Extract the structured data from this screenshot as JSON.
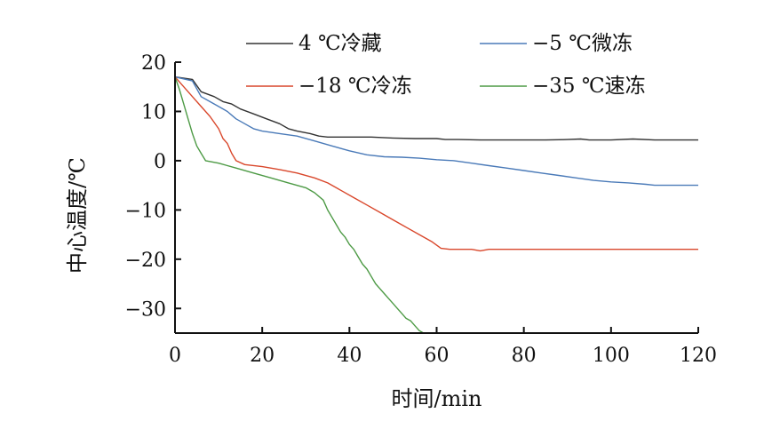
{
  "chart_data": {
    "type": "line",
    "title": "",
    "xlabel": "时间/min",
    "ylabel": "中心温度/℃",
    "xlim": [
      0,
      120
    ],
    "ylim": [
      -35,
      20
    ],
    "xticks": [
      0,
      20,
      40,
      60,
      80,
      100,
      120
    ],
    "yticks": [
      20,
      10,
      0,
      -10,
      -20,
      -30
    ],
    "xtick_labels": [
      "0",
      "20",
      "40",
      "60",
      "80",
      "100",
      "120"
    ],
    "ytick_labels": [
      "20",
      "10",
      "0",
      "−10",
      "−20",
      "−30"
    ],
    "grid": false,
    "legend_position": "top",
    "series": [
      {
        "name": "4 ℃冷藏",
        "color": "#333333",
        "points": [
          [
            0,
            17
          ],
          [
            4,
            16.5
          ],
          [
            6,
            14
          ],
          [
            9,
            13
          ],
          [
            11,
            12
          ],
          [
            13,
            11.5
          ],
          [
            15,
            10.5
          ],
          [
            18,
            9.5
          ],
          [
            21,
            8.5
          ],
          [
            24,
            7.5
          ],
          [
            26,
            6.5
          ],
          [
            28,
            6
          ],
          [
            31,
            5.5
          ],
          [
            33,
            5
          ],
          [
            35,
            4.8
          ],
          [
            40,
            4.8
          ],
          [
            45,
            4.8
          ],
          [
            50,
            4.6
          ],
          [
            55,
            4.5
          ],
          [
            60,
            4.5
          ],
          [
            62,
            4.3
          ],
          [
            65,
            4.3
          ],
          [
            70,
            4.2
          ],
          [
            75,
            4.2
          ],
          [
            80,
            4.2
          ],
          [
            85,
            4.2
          ],
          [
            90,
            4.3
          ],
          [
            93,
            4.4
          ],
          [
            95,
            4.2
          ],
          [
            100,
            4.2
          ],
          [
            105,
            4.4
          ],
          [
            110,
            4.2
          ],
          [
            115,
            4.2
          ],
          [
            120,
            4.2
          ]
        ]
      },
      {
        "name": "−5 ℃微冻",
        "color": "#4a7ab8",
        "points": [
          [
            0,
            17
          ],
          [
            4,
            16.2
          ],
          [
            6,
            13
          ],
          [
            8,
            12
          ],
          [
            10,
            11
          ],
          [
            12,
            10
          ],
          [
            14,
            8.5
          ],
          [
            16,
            7.5
          ],
          [
            18,
            6.5
          ],
          [
            20,
            6
          ],
          [
            24,
            5.5
          ],
          [
            28,
            5
          ],
          [
            32,
            4
          ],
          [
            36,
            3
          ],
          [
            40,
            2
          ],
          [
            44,
            1.2
          ],
          [
            48,
            0.8
          ],
          [
            52,
            0.7
          ],
          [
            56,
            0.5
          ],
          [
            60,
            0.2
          ],
          [
            64,
            0
          ],
          [
            68,
            -0.5
          ],
          [
            72,
            -1
          ],
          [
            76,
            -1.5
          ],
          [
            80,
            -2
          ],
          [
            84,
            -2.5
          ],
          [
            88,
            -3
          ],
          [
            92,
            -3.5
          ],
          [
            96,
            -4
          ],
          [
            100,
            -4.3
          ],
          [
            104,
            -4.5
          ],
          [
            108,
            -4.8
          ],
          [
            110,
            -5
          ],
          [
            115,
            -5
          ],
          [
            120,
            -5
          ]
        ]
      },
      {
        "name": "−18 ℃冷冻",
        "color": "#d9472b",
        "points": [
          [
            0,
            17
          ],
          [
            2,
            15
          ],
          [
            4,
            13
          ],
          [
            6,
            11
          ],
          [
            8,
            9
          ],
          [
            10,
            6.5
          ],
          [
            11,
            4.5
          ],
          [
            12,
            3.5
          ],
          [
            13,
            1.5
          ],
          [
            14,
            0
          ],
          [
            16,
            -0.8
          ],
          [
            20,
            -1.2
          ],
          [
            24,
            -1.8
          ],
          [
            28,
            -2.5
          ],
          [
            32,
            -3.5
          ],
          [
            35,
            -4.5
          ],
          [
            38,
            -6
          ],
          [
            41,
            -7.5
          ],
          [
            44,
            -9
          ],
          [
            47,
            -10.5
          ],
          [
            50,
            -12
          ],
          [
            53,
            -13.5
          ],
          [
            56,
            -15
          ],
          [
            59,
            -16.5
          ],
          [
            61,
            -17.8
          ],
          [
            63,
            -18
          ],
          [
            66,
            -18
          ],
          [
            68,
            -18
          ],
          [
            70,
            -18.3
          ],
          [
            72,
            -18
          ],
          [
            76,
            -18
          ],
          [
            80,
            -18
          ],
          [
            85,
            -18
          ],
          [
            90,
            -18
          ],
          [
            95,
            -18
          ],
          [
            100,
            -18
          ],
          [
            105,
            -18
          ],
          [
            110,
            -18
          ],
          [
            115,
            -18
          ],
          [
            120,
            -18
          ]
        ]
      },
      {
        "name": "−35 ℃速冻",
        "color": "#4d9a45",
        "points": [
          [
            0,
            17
          ],
          [
            1,
            14.5
          ],
          [
            2,
            11.5
          ],
          [
            3,
            8.5
          ],
          [
            4,
            5.5
          ],
          [
            5,
            3
          ],
          [
            6,
            1.5
          ],
          [
            7,
            0
          ],
          [
            10,
            -0.5
          ],
          [
            14,
            -1.5
          ],
          [
            18,
            -2.5
          ],
          [
            22,
            -3.5
          ],
          [
            26,
            -4.5
          ],
          [
            30,
            -5.5
          ],
          [
            32,
            -6.5
          ],
          [
            34,
            -8
          ],
          [
            35,
            -10
          ],
          [
            36,
            -11.5
          ],
          [
            37,
            -13
          ],
          [
            38,
            -14.5
          ],
          [
            39,
            -15.5
          ],
          [
            40,
            -17
          ],
          [
            41,
            -18
          ],
          [
            42,
            -19.5
          ],
          [
            43,
            -21
          ],
          [
            44,
            -22
          ],
          [
            45,
            -23.5
          ],
          [
            46,
            -25
          ],
          [
            47,
            -26
          ],
          [
            48,
            -27
          ],
          [
            49,
            -28
          ],
          [
            50,
            -29
          ],
          [
            51,
            -30
          ],
          [
            52,
            -31
          ],
          [
            53,
            -32
          ],
          [
            54,
            -32.5
          ],
          [
            55,
            -33.5
          ],
          [
            56,
            -34.5
          ],
          [
            57,
            -35
          ]
        ]
      }
    ]
  }
}
